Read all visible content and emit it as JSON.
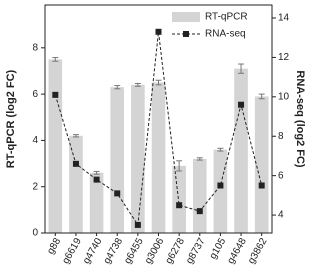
{
  "chart_data": {
    "type": "bar",
    "categories": [
      "g88",
      "g6619",
      "g4740",
      "g4738",
      "g6455",
      "g3006",
      "g6278",
      "g8737",
      "g105",
      "g4648",
      "g3862"
    ],
    "series": [
      {
        "name": "RT-qPCR",
        "type": "bar",
        "color": "#d4d4d4",
        "error_color": "#777777",
        "values": [
          7.5,
          4.2,
          2.6,
          6.3,
          6.4,
          6.5,
          2.9,
          3.2,
          3.6,
          7.1,
          5.9
        ],
        "errors": [
          0.08,
          0.05,
          0.06,
          0.07,
          0.06,
          0.1,
          0.22,
          0.05,
          0.06,
          0.2,
          0.1
        ]
      },
      {
        "name": "RNA-seq",
        "type": "line",
        "axis": "y2",
        "color": "#222222",
        "values": [
          10.1,
          6.6,
          5.8,
          5.1,
          3.5,
          13.3,
          4.5,
          4.2,
          5.5,
          9.6,
          5.5
        ]
      }
    ],
    "y_label": "RT-qPCR (log2 FC)",
    "y2_label": "RNA-seq (log2 FC)",
    "ylim": [
      0,
      9.85
    ],
    "yticks": [
      0,
      2,
      4,
      6,
      8
    ],
    "y2lim": [
      3.09,
      14.66
    ],
    "y2ticks": [
      4,
      6,
      8,
      10,
      12,
      14
    ],
    "legend": "upper right"
  }
}
